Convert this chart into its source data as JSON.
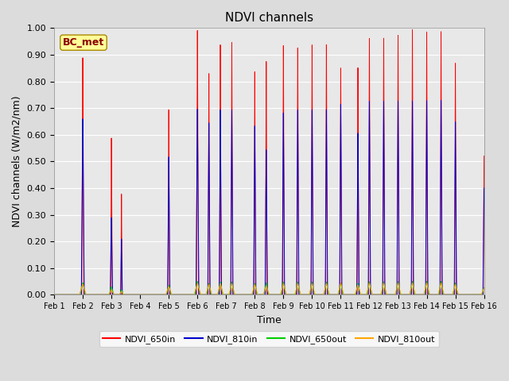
{
  "title": "NDVI channels",
  "xlabel": "Time",
  "ylabel": "NDVI channels (W/m2/nm)",
  "ylim": [
    0.0,
    1.0
  ],
  "yticks": [
    0.0,
    0.1,
    0.2,
    0.3,
    0.4,
    0.5,
    0.6,
    0.7,
    0.8,
    0.9,
    1.0
  ],
  "xtick_labels": [
    "Feb 1",
    "Feb 2",
    "Feb 3",
    "Feb 4",
    "Feb 5",
    "Feb 6",
    "Feb 7",
    "Feb 8",
    "Feb 9",
    "Feb 10",
    "Feb 11",
    "Feb 12",
    "Feb 13",
    "Feb 14",
    "Feb 15",
    "Feb 16"
  ],
  "annotation_text": "BC_met",
  "annotation_color": "#8B0000",
  "annotation_bg": "#FFFF99",
  "colors": {
    "NDVI_650in": "#FF0000",
    "NDVI_810in": "#0000CC",
    "NDVI_650out": "#00CC00",
    "NDVI_810out": "#FFA500"
  },
  "background_color": "#E8E8E8",
  "grid_color": "#FFFFFF",
  "spike_data": [
    [
      1.0,
      0.89,
      0.66,
      0.05,
      0.08
    ],
    [
      2.0,
      0.59,
      0.29,
      0.04,
      0.07
    ],
    [
      2.35,
      0.38,
      0.21,
      0.03,
      0.05
    ],
    [
      4.0,
      0.7,
      0.52,
      0.04,
      0.07
    ],
    [
      5.0,
      1.0,
      0.7,
      0.05,
      0.08
    ],
    [
      5.4,
      0.84,
      0.65,
      0.04,
      0.07
    ],
    [
      5.8,
      0.95,
      0.7,
      0.04,
      0.07
    ],
    [
      6.2,
      0.96,
      0.7,
      0.04,
      0.07
    ],
    [
      7.0,
      0.85,
      0.64,
      0.04,
      0.07
    ],
    [
      7.4,
      0.89,
      0.55,
      0.04,
      0.07
    ],
    [
      8.0,
      0.95,
      0.69,
      0.04,
      0.07
    ],
    [
      8.5,
      0.94,
      0.7,
      0.04,
      0.07
    ],
    [
      9.0,
      0.95,
      0.7,
      0.04,
      0.07
    ],
    [
      9.5,
      0.95,
      0.7,
      0.04,
      0.07
    ],
    [
      10.0,
      0.86,
      0.72,
      0.04,
      0.07
    ],
    [
      10.6,
      0.86,
      0.61,
      0.04,
      0.07
    ],
    [
      11.0,
      0.97,
      0.73,
      0.04,
      0.07
    ],
    [
      11.5,
      0.97,
      0.73,
      0.04,
      0.07
    ],
    [
      12.0,
      0.98,
      0.73,
      0.04,
      0.07
    ],
    [
      12.5,
      1.0,
      0.73,
      0.04,
      0.07
    ],
    [
      13.0,
      0.99,
      0.73,
      0.04,
      0.07
    ],
    [
      13.5,
      0.99,
      0.73,
      0.04,
      0.07
    ],
    [
      14.0,
      0.87,
      0.65,
      0.04,
      0.07
    ],
    [
      15.0,
      0.52,
      0.4,
      0.04,
      0.07
    ]
  ]
}
